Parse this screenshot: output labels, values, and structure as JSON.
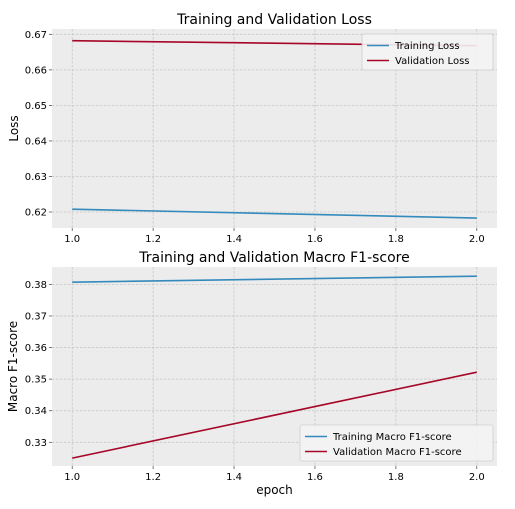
{
  "chart_data": [
    {
      "type": "line",
      "title": "Training and Validation Loss",
      "xlabel": "",
      "ylabel": "Loss",
      "xlim": [
        0.95,
        2.05
      ],
      "ylim": [
        0.6155,
        0.6715
      ],
      "xticks": [
        1.0,
        1.2,
        1.4,
        1.6,
        1.8,
        2.0
      ],
      "xtick_labels": [
        "1.0",
        "1.2",
        "1.4",
        "1.6",
        "1.8",
        "2.0"
      ],
      "yticks": [
        0.62,
        0.63,
        0.64,
        0.65,
        0.66,
        0.67
      ],
      "ytick_labels": [
        "0.62",
        "0.63",
        "0.64",
        "0.65",
        "0.66",
        "0.67"
      ],
      "grid": true,
      "legend": "top-right",
      "series": [
        {
          "name": "Training Loss",
          "color": "#348abd",
          "x": [
            1.0,
            2.0
          ],
          "y": [
            0.6208,
            0.6183
          ]
        },
        {
          "name": "Validation Loss",
          "color": "#a60628",
          "x": [
            1.0,
            2.0
          ],
          "y": [
            0.6682,
            0.6668
          ]
        }
      ]
    },
    {
      "type": "line",
      "title": "Training and Validation Macro F1-score",
      "xlabel": "epoch",
      "ylabel": "Macro F1-score",
      "xlim": [
        0.95,
        2.05
      ],
      "ylim": [
        0.3225,
        0.3855
      ],
      "xticks": [
        1.0,
        1.2,
        1.4,
        1.6,
        1.8,
        2.0
      ],
      "xtick_labels": [
        "1.0",
        "1.2",
        "1.4",
        "1.6",
        "1.8",
        "2.0"
      ],
      "yticks": [
        0.33,
        0.34,
        0.35,
        0.36,
        0.37,
        0.38
      ],
      "ytick_labels": [
        "0.33",
        "0.34",
        "0.35",
        "0.36",
        "0.37",
        "0.38"
      ],
      "grid": true,
      "legend": "bottom-right",
      "series": [
        {
          "name": "Training Macro F1-score",
          "color": "#348abd",
          "x": [
            1.0,
            2.0
          ],
          "y": [
            0.3807,
            0.3826
          ]
        },
        {
          "name": "Validation Macro F1-score",
          "color": "#a60628",
          "x": [
            1.0,
            2.0
          ],
          "y": [
            0.325,
            0.3522
          ]
        }
      ]
    }
  ]
}
